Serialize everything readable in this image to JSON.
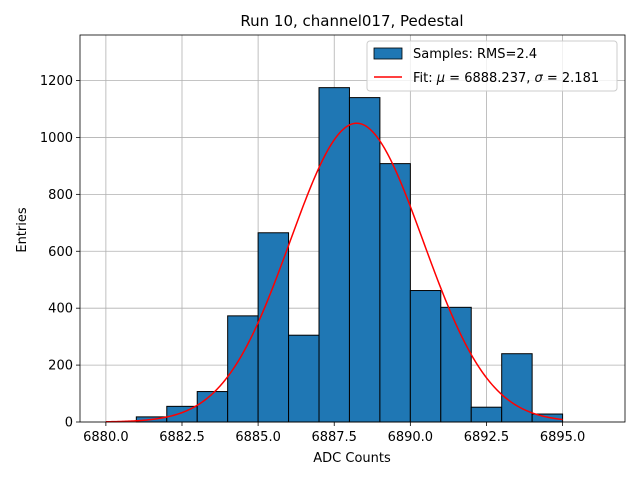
{
  "chart_data": {
    "type": "bar",
    "title": "Run 10, channel017, Pedestal",
    "xlabel": "ADC Counts",
    "ylabel": "Entries",
    "xlim": [
      6879.15,
      6897.05
    ],
    "ylim": [
      0,
      1360
    ],
    "grid": true,
    "x_ticks": [
      6880.0,
      6882.5,
      6885.0,
      6887.5,
      6890.0,
      6892.5,
      6895.0
    ],
    "x_tick_labels": [
      "6880.0",
      "6882.5",
      "6885.0",
      "6887.5",
      "6890.0",
      "6892.5",
      "6895.0"
    ],
    "y_ticks": [
      0,
      200,
      400,
      600,
      800,
      1000,
      1200
    ],
    "y_tick_labels": [
      "0",
      "200",
      "400",
      "600",
      "800",
      "1000",
      "1200"
    ],
    "histogram": {
      "name": "Samples: RMS=2.4",
      "color": "#1f77b4",
      "edgecolor": "#000000",
      "bin_edges": [
        6881,
        6882,
        6883,
        6884,
        6885,
        6886,
        6887,
        6888,
        6889,
        6890,
        6891,
        6892,
        6893,
        6894,
        6895
      ],
      "counts": [
        18,
        55,
        107,
        373,
        665,
        305,
        1175,
        1140,
        908,
        462,
        403,
        52,
        240,
        28
      ]
    },
    "fit": {
      "name": "Fit: μ = 6888.237, σ = 2.181",
      "label_prefix": "Fit: ",
      "mu_symbol": "μ",
      "mu_text": " = 6888.237, ",
      "sigma_symbol": "σ",
      "sigma_text": " = 2.181",
      "color": "#ff0000",
      "mu": 6888.237,
      "sigma": 2.181,
      "amplitude": 1050,
      "x_start": 6880.0,
      "x_end": 6895.0
    },
    "legend": {
      "placement": "top-right"
    }
  }
}
